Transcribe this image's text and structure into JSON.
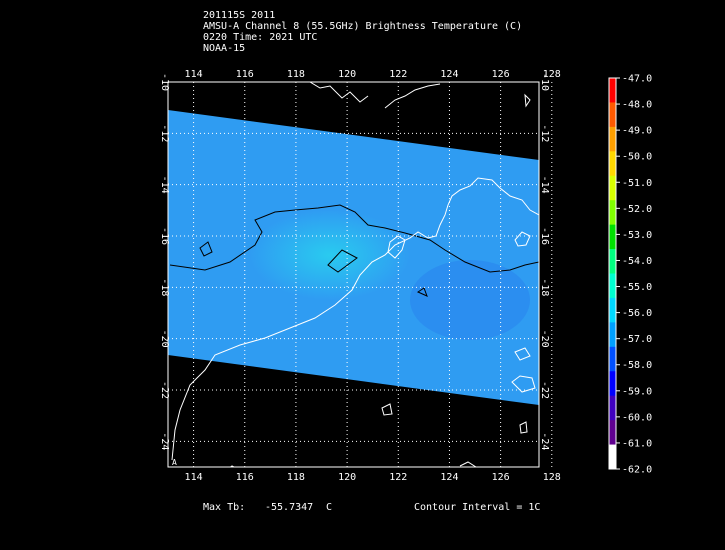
{
  "header": {
    "line1": "201115S 2011",
    "line2": "AMSU-A Channel 8 (55.5GHz) Brightness Temperature (C)",
    "line3": "0220 Time: 2021 UTC",
    "line4": "NOAA-15"
  },
  "map": {
    "lon_ticks": [
      "114",
      "116",
      "118",
      "120",
      "122",
      "124",
      "126",
      "128"
    ],
    "lat_ticks": [
      "-10",
      "-12",
      "-14",
      "-16",
      "-18",
      "-20",
      "-22",
      "-24"
    ],
    "lon_range": [
      113,
      127.5
    ],
    "lat_range": [
      -10,
      -25
    ],
    "swath_color": "#2f9cf2",
    "corner_label": "A"
  },
  "colorbar": {
    "labels": [
      "-47.0",
      "-48.0",
      "-49.0",
      "-50.0",
      "-51.0",
      "-52.0",
      "-53.0",
      "-54.0",
      "-55.0",
      "-56.0",
      "-57.0",
      "-58.0",
      "-59.0",
      "-60.0",
      "-61.0",
      "-62.0"
    ],
    "colors": [
      "#ff0000",
      "#ff5a00",
      "#ffa000",
      "#ffd800",
      "#d8ff00",
      "#80ff00",
      "#00e000",
      "#00ff80",
      "#00ffd0",
      "#00d8ff",
      "#00a0ff",
      "#0050ff",
      "#0000ff",
      "#4000c0",
      "#600090",
      "#ffffff"
    ]
  },
  "footer": {
    "max_label": "Max Tb:",
    "max_value": "-55.7347",
    "max_unit": "C",
    "contour": "Contour Interval = 1C"
  }
}
